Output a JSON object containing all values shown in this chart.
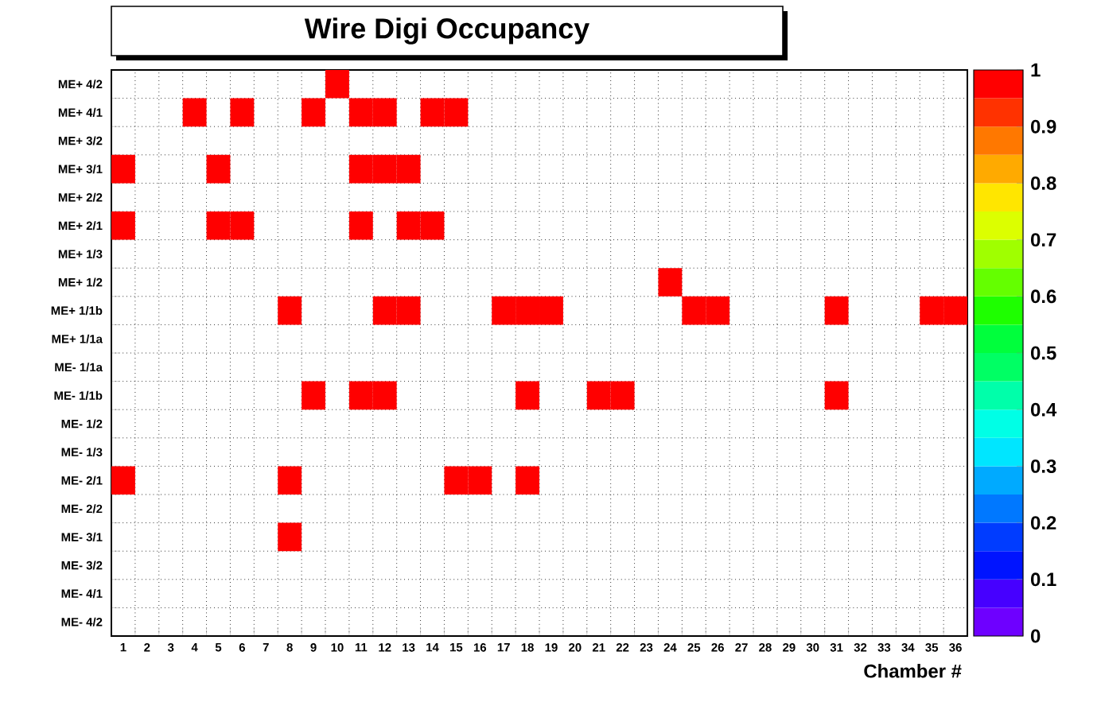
{
  "chart_data": {
    "type": "heatmap",
    "title": "Wire Digi Occupancy",
    "xlabel": "Chamber #",
    "categories": [
      "1",
      "2",
      "3",
      "4",
      "5",
      "6",
      "7",
      "8",
      "9",
      "10",
      "11",
      "12",
      "13",
      "14",
      "15",
      "16",
      "17",
      "18",
      "19",
      "20",
      "21",
      "22",
      "23",
      "24",
      "25",
      "26",
      "27",
      "28",
      "29",
      "30",
      "31",
      "32",
      "33",
      "34",
      "35",
      "36"
    ],
    "y_categories": [
      "ME+ 4/2",
      "ME+ 4/1",
      "ME+ 3/2",
      "ME+ 3/1",
      "ME+ 2/2",
      "ME+ 2/1",
      "ME+ 1/3",
      "ME+ 1/2",
      "ME+ 1/1b",
      "ME+ 1/1a",
      "ME- 1/1a",
      "ME- 1/1b",
      "ME- 1/2",
      "ME- 1/3",
      "ME- 2/1",
      "ME- 2/2",
      "ME- 3/1",
      "ME- 3/2",
      "ME- 4/1",
      "ME- 4/2"
    ],
    "cells": [
      [
        null,
        null,
        null,
        null,
        null,
        null,
        null,
        null,
        null,
        1,
        null,
        null,
        null,
        null,
        null,
        null,
        null,
        null,
        null,
        null,
        null,
        null,
        null,
        null,
        null,
        null,
        null,
        null,
        null,
        null,
        null,
        null,
        null,
        null,
        null,
        null
      ],
      [
        null,
        null,
        null,
        1,
        null,
        1,
        null,
        null,
        1,
        null,
        1,
        1,
        null,
        1,
        1,
        null,
        null,
        null,
        null,
        null,
        null,
        null,
        null,
        null,
        null,
        null,
        null,
        null,
        null,
        null,
        null,
        null,
        null,
        null,
        null,
        null
      ],
      [
        null,
        null,
        null,
        null,
        null,
        null,
        null,
        null,
        null,
        null,
        null,
        null,
        null,
        null,
        null,
        null,
        null,
        null,
        null,
        null,
        null,
        null,
        null,
        null,
        null,
        null,
        null,
        null,
        null,
        null,
        null,
        null,
        null,
        null,
        null,
        null
      ],
      [
        1,
        null,
        null,
        null,
        1,
        null,
        null,
        null,
        null,
        null,
        1,
        1,
        1,
        null,
        null,
        null,
        null,
        null,
        null,
        null,
        null,
        null,
        null,
        null,
        null,
        null,
        null,
        null,
        null,
        null,
        null,
        null,
        null,
        null,
        null,
        null
      ],
      [
        null,
        null,
        null,
        null,
        null,
        null,
        null,
        null,
        null,
        null,
        null,
        null,
        null,
        null,
        null,
        null,
        null,
        null,
        null,
        null,
        null,
        null,
        null,
        null,
        null,
        null,
        null,
        null,
        null,
        null,
        null,
        null,
        null,
        null,
        null,
        null
      ],
      [
        1,
        null,
        null,
        null,
        1,
        1,
        null,
        null,
        null,
        null,
        1,
        null,
        1,
        1,
        null,
        null,
        null,
        null,
        null,
        null,
        null,
        null,
        null,
        null,
        null,
        null,
        null,
        null,
        null,
        null,
        null,
        null,
        null,
        null,
        null,
        null
      ],
      [
        null,
        null,
        null,
        null,
        null,
        null,
        null,
        null,
        null,
        null,
        null,
        null,
        null,
        null,
        null,
        null,
        null,
        null,
        null,
        null,
        null,
        null,
        null,
        null,
        null,
        null,
        null,
        null,
        null,
        null,
        null,
        null,
        null,
        null,
        null,
        null
      ],
      [
        null,
        null,
        null,
        null,
        null,
        null,
        null,
        null,
        null,
        null,
        null,
        null,
        null,
        null,
        null,
        null,
        null,
        null,
        null,
        null,
        null,
        null,
        null,
        1,
        null,
        null,
        null,
        null,
        null,
        null,
        null,
        null,
        null,
        null,
        null,
        null
      ],
      [
        null,
        null,
        null,
        null,
        null,
        null,
        null,
        1,
        null,
        null,
        null,
        1,
        1,
        null,
        null,
        null,
        1,
        1,
        1,
        null,
        null,
        null,
        null,
        null,
        1,
        1,
        null,
        null,
        null,
        null,
        1,
        null,
        null,
        null,
        1,
        1
      ],
      [
        null,
        null,
        null,
        null,
        null,
        null,
        null,
        null,
        null,
        null,
        null,
        null,
        null,
        null,
        null,
        null,
        null,
        null,
        null,
        null,
        null,
        null,
        null,
        null,
        null,
        null,
        null,
        null,
        null,
        null,
        null,
        null,
        null,
        null,
        null,
        null
      ],
      [
        null,
        null,
        null,
        null,
        null,
        null,
        null,
        null,
        null,
        null,
        null,
        null,
        null,
        null,
        null,
        null,
        null,
        null,
        null,
        null,
        null,
        null,
        null,
        null,
        null,
        null,
        null,
        null,
        null,
        null,
        null,
        null,
        null,
        null,
        null,
        null
      ],
      [
        null,
        null,
        null,
        null,
        null,
        null,
        null,
        null,
        1,
        null,
        1,
        1,
        null,
        null,
        null,
        null,
        null,
        1,
        null,
        null,
        1,
        1,
        null,
        null,
        null,
        null,
        null,
        null,
        null,
        null,
        1,
        null,
        null,
        null,
        null,
        null
      ],
      [
        null,
        null,
        null,
        null,
        null,
        null,
        null,
        null,
        null,
        null,
        null,
        null,
        null,
        null,
        null,
        null,
        null,
        null,
        null,
        null,
        null,
        null,
        null,
        null,
        null,
        null,
        null,
        null,
        null,
        null,
        null,
        null,
        null,
        null,
        null,
        null
      ],
      [
        null,
        null,
        null,
        null,
        null,
        null,
        null,
        null,
        null,
        null,
        null,
        null,
        null,
        null,
        null,
        null,
        null,
        null,
        null,
        null,
        null,
        null,
        null,
        null,
        null,
        null,
        null,
        null,
        null,
        null,
        null,
        null,
        null,
        null,
        null,
        null
      ],
      [
        1,
        null,
        null,
        null,
        null,
        null,
        null,
        1,
        null,
        null,
        null,
        null,
        null,
        null,
        1,
        1,
        null,
        1,
        null,
        null,
        null,
        null,
        null,
        null,
        null,
        null,
        null,
        null,
        null,
        null,
        null,
        null,
        null,
        null,
        null,
        null
      ],
      [
        null,
        null,
        null,
        null,
        null,
        null,
        null,
        null,
        null,
        null,
        null,
        null,
        null,
        null,
        null,
        null,
        null,
        null,
        null,
        null,
        null,
        null,
        null,
        null,
        null,
        null,
        null,
        null,
        null,
        null,
        null,
        null,
        null,
        null,
        null,
        null
      ],
      [
        null,
        null,
        null,
        null,
        null,
        null,
        null,
        1,
        null,
        null,
        null,
        null,
        null,
        null,
        null,
        null,
        null,
        null,
        null,
        null,
        null,
        null,
        null,
        null,
        null,
        null,
        null,
        null,
        null,
        null,
        null,
        null,
        null,
        null,
        null,
        null
      ],
      [
        null,
        null,
        null,
        null,
        null,
        null,
        null,
        null,
        null,
        null,
        null,
        null,
        null,
        null,
        null,
        null,
        null,
        null,
        null,
        null,
        null,
        null,
        null,
        null,
        null,
        null,
        null,
        null,
        null,
        null,
        null,
        null,
        null,
        null,
        null,
        null
      ],
      [
        null,
        null,
        null,
        null,
        null,
        null,
        null,
        null,
        null,
        null,
        null,
        null,
        null,
        null,
        null,
        null,
        null,
        null,
        null,
        null,
        null,
        null,
        null,
        null,
        null,
        null,
        null,
        null,
        null,
        null,
        null,
        null,
        null,
        null,
        null,
        null
      ],
      [
        null,
        null,
        null,
        null,
        null,
        null,
        null,
        null,
        null,
        null,
        null,
        null,
        null,
        null,
        null,
        null,
        null,
        null,
        null,
        null,
        null,
        null,
        null,
        null,
        null,
        null,
        null,
        null,
        null,
        null,
        null,
        null,
        null,
        null,
        null,
        null
      ]
    ],
    "clim": [
      0,
      1
    ],
    "cticks": [
      0,
      0.1,
      0.2,
      0.3,
      0.4,
      0.5,
      0.6,
      0.7,
      0.8,
      0.9,
      1
    ],
    "grid": true
  }
}
